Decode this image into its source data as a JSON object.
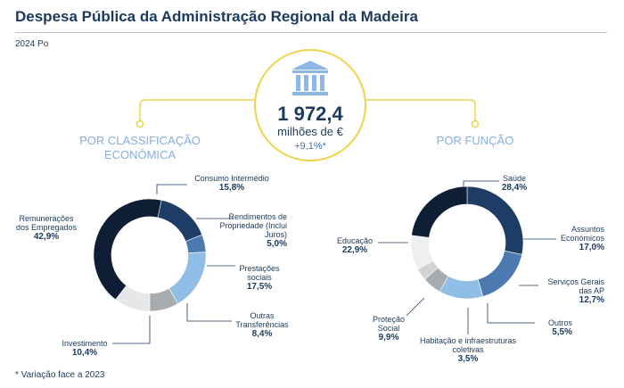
{
  "header": {
    "title": "Despesa Pública da Administração Regional da Madeira",
    "period": "2024 Po"
  },
  "center": {
    "total": "1 972,4",
    "unit": "milhões de €",
    "change": "+9,1%*"
  },
  "footnote": "* Variação face a 2023",
  "colors": {
    "accent_yellow": "#f0d34a",
    "section_blue": "#86aede",
    "title_navy": "#1b3a5c",
    "icon_blue": "#8db7e6"
  },
  "chart_data": [
    {
      "type": "pie",
      "variant": "donut",
      "title": "POR CLASSIFICAÇÃO ECONÓMICA",
      "slices": [
        {
          "key": "consumo",
          "label": "Consumo Intermédio",
          "value": 15.8,
          "value_label": "15,8%",
          "color": "#1d3d66"
        },
        {
          "key": "rendimentos",
          "label": "Rendimentos de Propriedade (Inclui Juros)",
          "value": 5.0,
          "value_label": "5,0%",
          "color": "#4c7ab0"
        },
        {
          "key": "prestacoes",
          "label": "Prestações sociais",
          "value": 17.5,
          "value_label": "17,5%",
          "color": "#8fbde6"
        },
        {
          "key": "outras",
          "label": "Outras Transferências",
          "value": 8.4,
          "value_label": "8,4%",
          "color": "#a9acaf"
        },
        {
          "key": "investimento",
          "label": "Investimento",
          "value": 10.4,
          "value_label": "10,4%",
          "color": "#e6e7e9"
        },
        {
          "key": "remuneracoes",
          "label": "Remunerações dos Empregados",
          "value": 42.9,
          "value_label": "42,9%",
          "color": "#0d1e35"
        }
      ]
    },
    {
      "type": "pie",
      "variant": "donut",
      "title": "POR FUNÇÃO",
      "slices": [
        {
          "key": "saude",
          "label": "Saúde",
          "value": 28.4,
          "value_label": "28,4%",
          "color": "#1d3d66"
        },
        {
          "key": "assuntos",
          "label": "Assuntos Económicos",
          "value": 17.0,
          "value_label": "17,0%",
          "color": "#4c7ab0"
        },
        {
          "key": "servicos",
          "label": "Serviços Gerais das AP",
          "value": 12.7,
          "value_label": "12,7%",
          "color": "#8fbde6"
        },
        {
          "key": "outros",
          "label": "Outros",
          "value": 5.5,
          "value_label": "5,5%",
          "color": "#a9acaf"
        },
        {
          "key": "habitacao",
          "label": "Habitação e infraestruturas coletivas",
          "value": 3.5,
          "value_label": "3,5%",
          "color": "#d0d2d4"
        },
        {
          "key": "protecao",
          "label": "Proteção Social",
          "value": 9.9,
          "value_label": "9,9%",
          "color": "#eeeff0"
        },
        {
          "key": "educacao",
          "label": "Educação",
          "value": 22.9,
          "value_label": "22,9%",
          "color": "#0d1e35"
        }
      ]
    }
  ]
}
